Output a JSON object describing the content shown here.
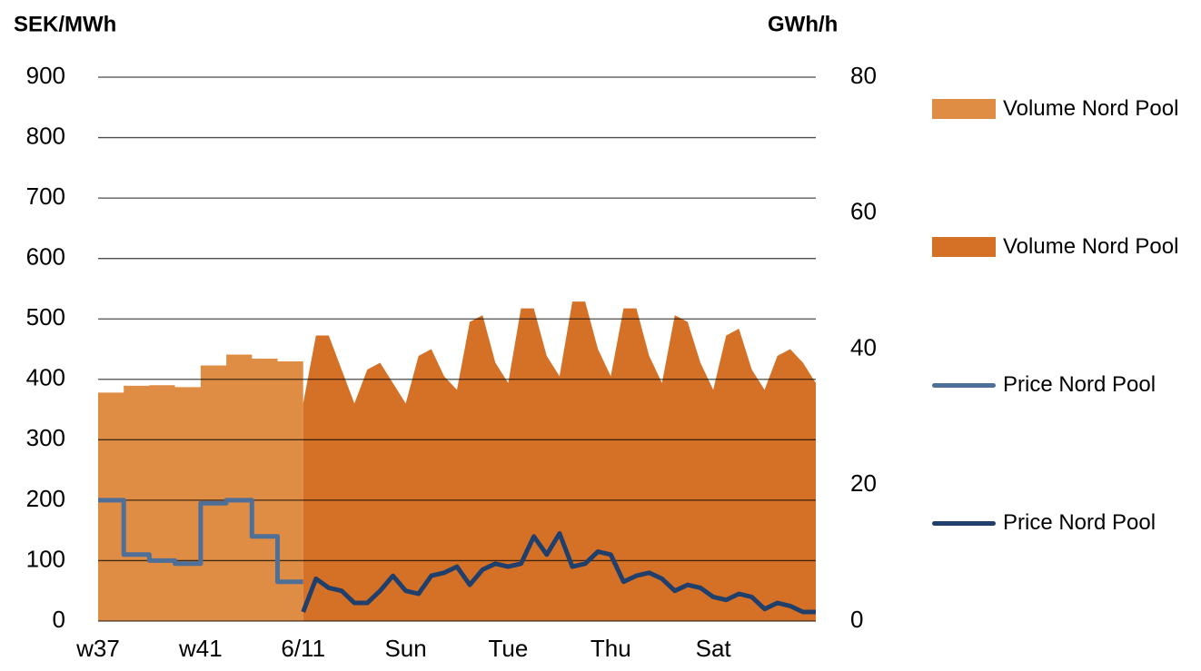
{
  "chart_data": {
    "type": "line",
    "y_label": "SEK/MWh",
    "y2_label": "GWh/h",
    "categories": [
      "w37",
      null,
      null,
      null,
      null,
      null,
      null,
      null,
      "w41",
      null,
      null,
      null,
      null,
      null,
      null,
      null,
      "6/11",
      null,
      null,
      null,
      null,
      null,
      null,
      null,
      "Sun",
      null,
      null,
      null,
      null,
      null,
      null,
      null,
      "Tue",
      null,
      null,
      null,
      null,
      null,
      null,
      null,
      "Thu",
      null,
      null,
      null,
      null,
      null,
      null,
      null,
      "Sat",
      null,
      null,
      null,
      null,
      null,
      null,
      null,
      null
    ],
    "ylim": [
      0,
      900
    ],
    "yticks": [
      0,
      100,
      200,
      300,
      400,
      500,
      600,
      700,
      800,
      900
    ],
    "y2lim": [
      0,
      80
    ],
    "y2ticks": [
      0,
      20,
      40,
      60,
      80
    ],
    "grid": true,
    "legend": "right",
    "series": [
      {
        "name": "Volume Nord Pool",
        "color": "#df8c45",
        "axis": "y2",
        "kind": "area",
        "step": true,
        "values": [
          33.6,
          33.6,
          34.6,
          34.6,
          34.7,
          34.7,
          34.4,
          34.4,
          37.6,
          37.6,
          39.2,
          39.2,
          38.6,
          38.6,
          38.2,
          38.2,
          null,
          null,
          null,
          null,
          null,
          null,
          null,
          null,
          null,
          null,
          null,
          null,
          null,
          null,
          null,
          null,
          null,
          null,
          null,
          null,
          null,
          null,
          null,
          null,
          null,
          null,
          null,
          null,
          null,
          null,
          null,
          null,
          null,
          null,
          null,
          null,
          null,
          null,
          null,
          null,
          null
        ]
      },
      {
        "name": "Volume Nord Pool",
        "color": "#d57127",
        "axis": "y2",
        "kind": "area",
        "step": false,
        "values": [
          null,
          null,
          null,
          null,
          null,
          null,
          null,
          null,
          null,
          null,
          null,
          null,
          null,
          null,
          null,
          null,
          32,
          42,
          42,
          37,
          32,
          37,
          38,
          35,
          32,
          39,
          40,
          36,
          34,
          44,
          45,
          38,
          35,
          46,
          46,
          39,
          36,
          47,
          47,
          40,
          36,
          46,
          46,
          39,
          35,
          45,
          44,
          38,
          34,
          42,
          43,
          37,
          34,
          39,
          40,
          38,
          35
        ]
      },
      {
        "name": "Price Nord Pool",
        "color": "#4e6f97",
        "axis": "y",
        "kind": "line",
        "step": true,
        "values": [
          200,
          200,
          110,
          110,
          100,
          100,
          95,
          95,
          195,
          195,
          200,
          200,
          140,
          140,
          65,
          65,
          null,
          null,
          null,
          null,
          null,
          null,
          null,
          null,
          null,
          null,
          null,
          null,
          null,
          null,
          null,
          null,
          null,
          null,
          null,
          null,
          null,
          null,
          null,
          null,
          null,
          null,
          null,
          null,
          null,
          null,
          null,
          null,
          null,
          null,
          null,
          null,
          null,
          null,
          null,
          null,
          null
        ]
      },
      {
        "name": "Price Nord Pool",
        "color": "#213f6b",
        "axis": "y",
        "kind": "line",
        "step": false,
        "values": [
          null,
          null,
          null,
          null,
          null,
          null,
          null,
          null,
          null,
          null,
          null,
          null,
          null,
          null,
          null,
          null,
          15,
          70,
          55,
          50,
          30,
          30,
          50,
          75,
          50,
          45,
          75,
          80,
          90,
          60,
          85,
          95,
          90,
          95,
          140,
          110,
          145,
          90,
          95,
          115,
          110,
          65,
          75,
          80,
          70,
          50,
          60,
          55,
          40,
          35,
          45,
          40,
          20,
          30,
          25,
          15,
          15
        ]
      }
    ]
  }
}
